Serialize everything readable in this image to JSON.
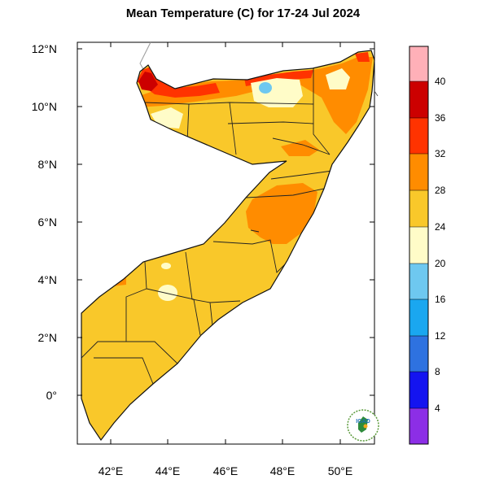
{
  "title": "Mean Temperature (C) for 17-24 Jul 2024",
  "map": {
    "region": "Somalia",
    "lat_ticks": [
      "12°N",
      "10°N",
      "8°N",
      "6°N",
      "4°N",
      "2°N",
      "0°"
    ],
    "lon_ticks": [
      "42°E",
      "44°E",
      "46°E",
      "48°E",
      "50°E"
    ]
  },
  "colorbar": {
    "labels": [
      "40",
      "36",
      "32",
      "28",
      "24",
      "20",
      "16",
      "12",
      "8",
      "4"
    ],
    "colors": [
      "#FFB0B8",
      "#CC0000",
      "#FF3300",
      "#FF8C00",
      "#F9C82A",
      "#FFFCC8",
      "#6EC8F0",
      "#1AA7F0",
      "#2E72E0",
      "#1414F0",
      "#8C2EE6"
    ]
  },
  "logo": {
    "text": "IGAD"
  }
}
